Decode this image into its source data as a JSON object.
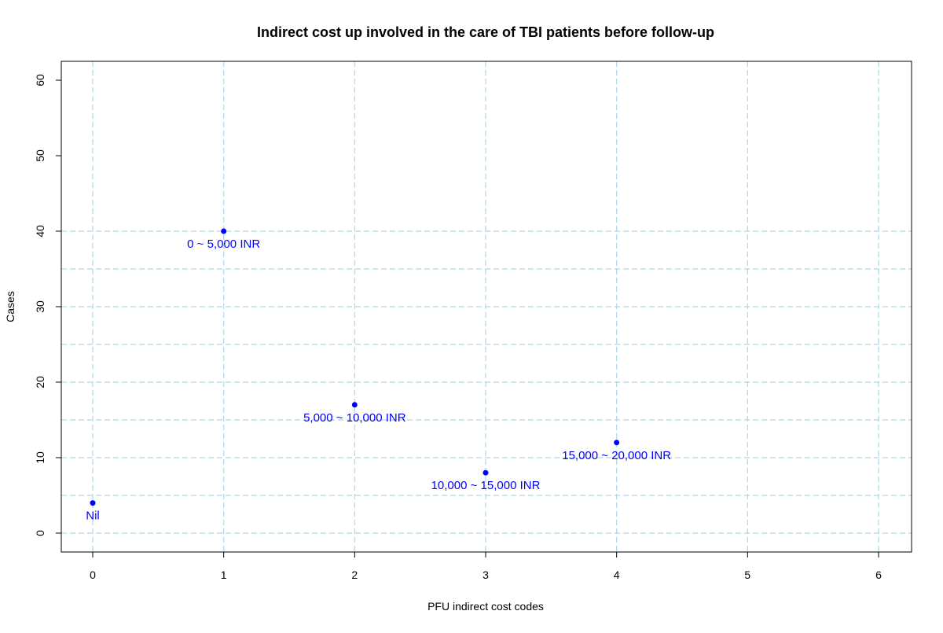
{
  "chart_data": {
    "type": "scatter",
    "title": "Indirect cost up involved in the care of TBI patients before follow-up",
    "xlabel": "PFU indirect cost codes",
    "ylabel": "Cases",
    "xlim": [
      0,
      6
    ],
    "ylim": [
      0,
      60
    ],
    "x_ticks": [
      "0",
      "1",
      "2",
      "3",
      "4",
      "5",
      "6"
    ],
    "y_ticks": [
      "0",
      "10",
      "20",
      "30",
      "40",
      "50",
      "60"
    ],
    "grid": true,
    "point_color": "#0000FF",
    "label_color": "#0000FF",
    "grid_color": "#ADD8E6",
    "points": [
      {
        "x": 0,
        "y": 4,
        "label": "Nil"
      },
      {
        "x": 1,
        "y": 40,
        "label": "0 ~ 5,000 INR"
      },
      {
        "x": 2,
        "y": 17,
        "label": "5,000 ~ 10,000 INR"
      },
      {
        "x": 3,
        "y": 8,
        "label": "10,000 ~ 15,000 INR"
      },
      {
        "x": 4,
        "y": 12,
        "label": "15,000 ~ 20,000 INR"
      }
    ]
  }
}
